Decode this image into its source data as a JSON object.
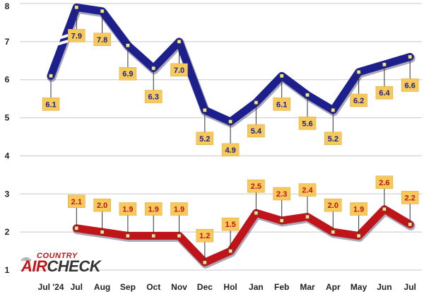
{
  "chart_data": {
    "type": "line",
    "categories": [
      "Jul '24",
      "Jul",
      "Aug",
      "Sep",
      "Oct",
      "Nov",
      "Dec",
      "Hol",
      "Jan",
      "Feb",
      "Mar",
      "Apr",
      "May",
      "Jun",
      "Jul"
    ],
    "ylim": [
      1,
      8
    ],
    "yticks": [
      "1",
      "2",
      "3",
      "4",
      "5",
      "6",
      "7",
      "8"
    ],
    "grid": true,
    "series": [
      {
        "color": "#1c1f8c",
        "values": [
          6.1,
          7.9,
          7.8,
          6.9,
          6.3,
          7.0,
          5.2,
          4.9,
          5.4,
          6.1,
          5.6,
          5.2,
          6.2,
          6.4,
          6.6
        ],
        "labels": [
          "6.1",
          "7.9",
          "7.8",
          "6.9",
          "6.3",
          "7.0",
          "5.2",
          "4.9",
          "5.4",
          "6.1",
          "5.6",
          "5.2",
          "6.2",
          "6.4",
          "6.6"
        ],
        "label_side": [
          "below",
          "below",
          "below",
          "below",
          "below",
          "below",
          "below",
          "below",
          "below",
          "below",
          "below",
          "below",
          "below",
          "below",
          "below"
        ],
        "label_text_color": "#1c1f8c",
        "break_after_index": 0
      },
      {
        "color": "#c0141b",
        "values": [
          null,
          2.1,
          2.0,
          1.9,
          1.9,
          1.9,
          1.2,
          1.5,
          2.5,
          2.3,
          2.4,
          2.0,
          1.9,
          2.6,
          2.2
        ],
        "labels": [
          "",
          "2.1",
          "2.0",
          "1.9",
          "1.9",
          "1.9",
          "1.2",
          "1.5",
          "2.5",
          "2.3",
          "2.4",
          "2.0",
          "1.9",
          "2.6",
          "2.2"
        ],
        "label_side": [
          "above",
          "above",
          "above",
          "above",
          "above",
          "above",
          "above",
          "above",
          "above",
          "above",
          "above",
          "above",
          "above",
          "above",
          "above"
        ],
        "label_text_color": "#c0141b"
      }
    ],
    "label_box_color": "#f7c95a",
    "marker_color": "#f7e690"
  },
  "brand": {
    "top": "COUNTRY",
    "air": "AIR",
    "check": "CHECK"
  }
}
